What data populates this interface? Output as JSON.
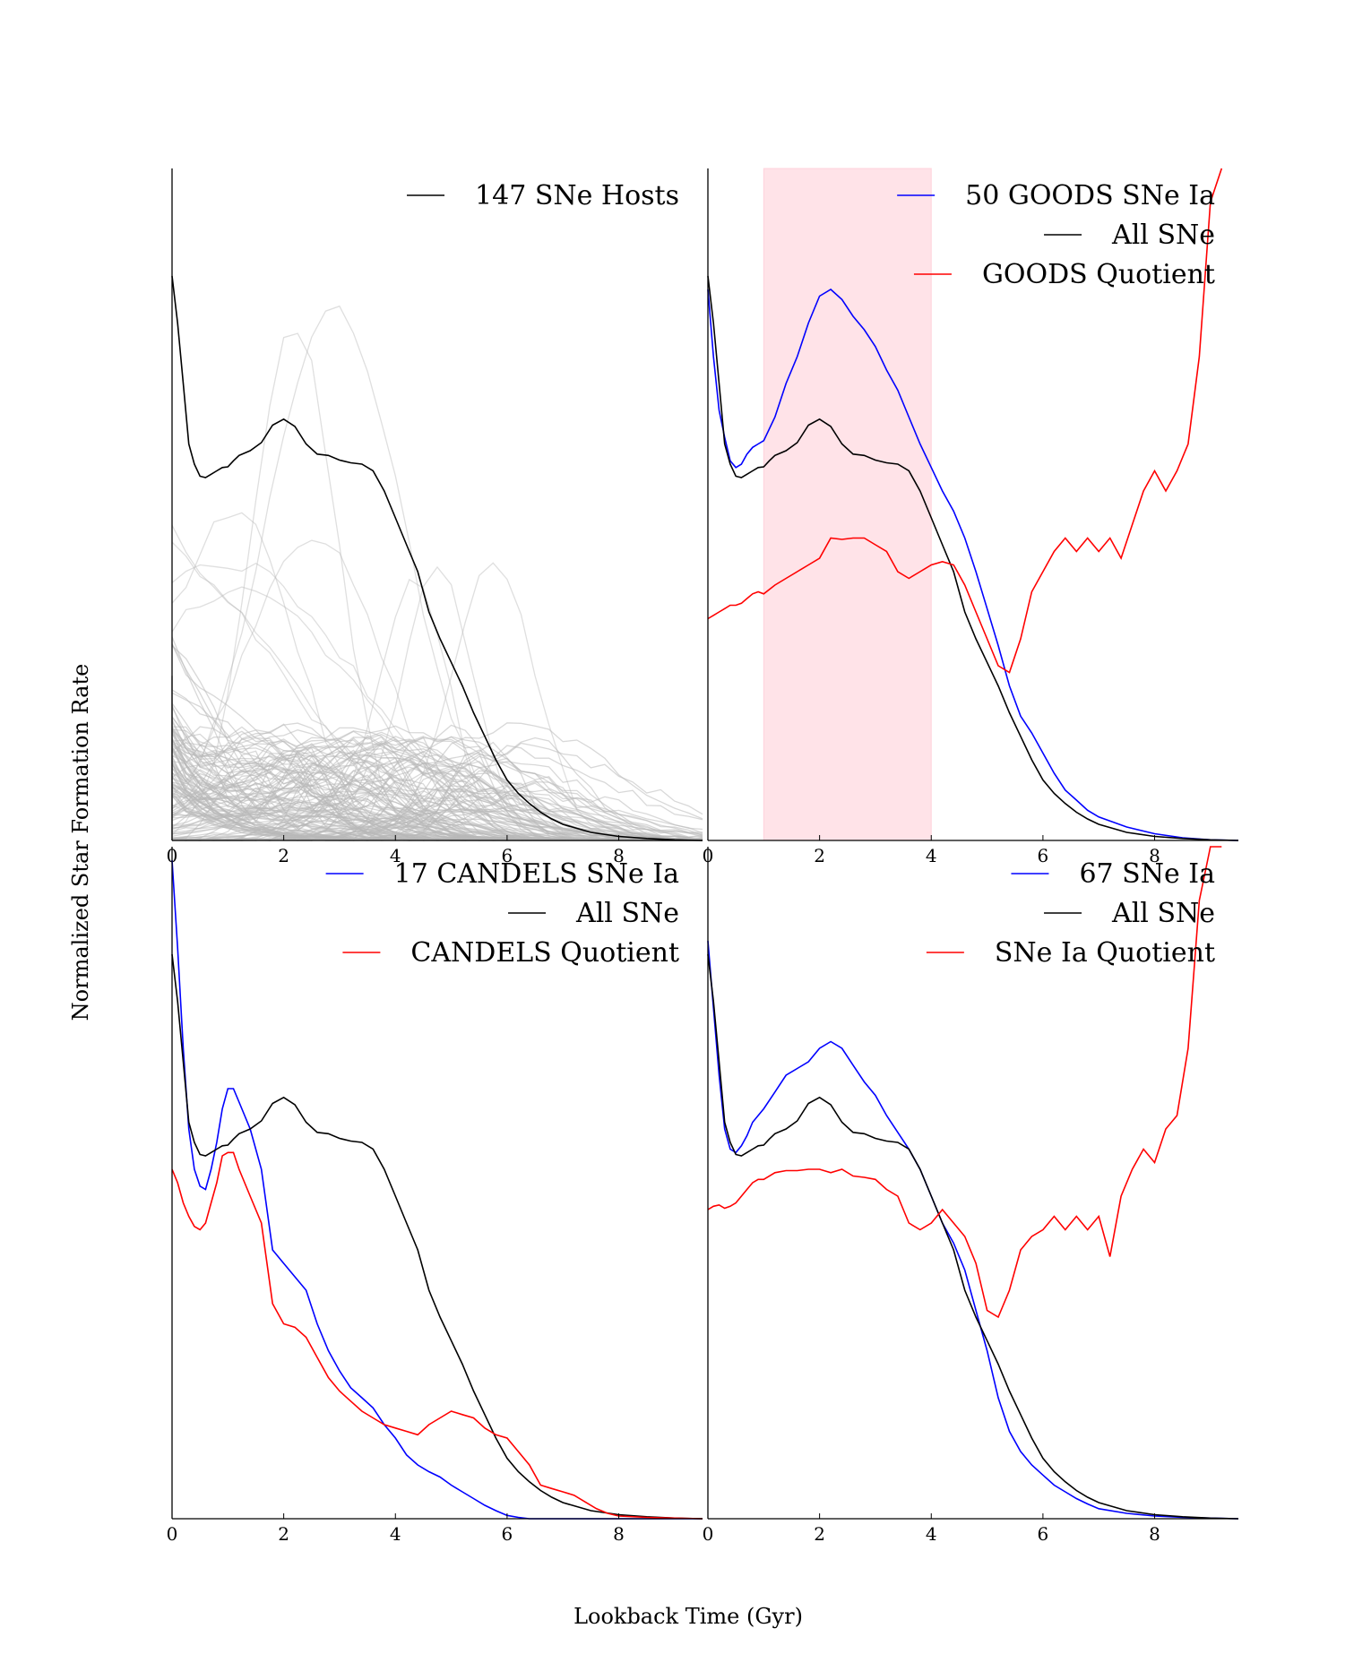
{
  "figure": {
    "xlabel": "Lookback Time (Gyr)",
    "ylabel": "Normalized Star Formation Rate"
  },
  "chart_data": [
    {
      "type": "line",
      "panel": "top-left",
      "xlim": [
        0,
        9.5
      ],
      "ylim": [
        0,
        1
      ],
      "xticks": [
        0,
        2,
        4,
        6,
        8
      ],
      "legend_position": "top-right",
      "series": [
        {
          "name": "147 SNe Hosts",
          "color": "#000000",
          "x": [
            0,
            0.1,
            0.2,
            0.3,
            0.4,
            0.5,
            0.6,
            0.7,
            0.8,
            0.9,
            1.0,
            1.1,
            1.2,
            1.4,
            1.6,
            1.8,
            2.0,
            2.2,
            2.4,
            2.6,
            2.8,
            3.0,
            3.2,
            3.4,
            3.6,
            3.8,
            4.0,
            4.2,
            4.4,
            4.6,
            4.8,
            5.0,
            5.2,
            5.4,
            5.6,
            5.8,
            6.0,
            6.2,
            6.4,
            6.6,
            6.8,
            7.0,
            7.5,
            8.0,
            8.5,
            9.0,
            9.5
          ],
          "y": [
            0.84,
            0.77,
            0.68,
            0.59,
            0.56,
            0.542,
            0.54,
            0.545,
            0.55,
            0.555,
            0.556,
            0.565,
            0.573,
            0.58,
            0.592,
            0.618,
            0.627,
            0.616,
            0.59,
            0.575,
            0.573,
            0.566,
            0.562,
            0.56,
            0.55,
            0.52,
            0.48,
            0.44,
            0.4,
            0.34,
            0.3,
            0.265,
            0.23,
            0.19,
            0.155,
            0.12,
            0.09,
            0.07,
            0.055,
            0.042,
            0.032,
            0.024,
            0.012,
            0.006,
            0.003,
            0.001,
            0.0
          ]
        }
      ],
      "background_hosts": {
        "count": 147,
        "color": "#b8b8b8"
      }
    },
    {
      "type": "line",
      "panel": "top-right",
      "xlim": [
        0,
        9.5
      ],
      "ylim": [
        0,
        1
      ],
      "xticks": [
        0,
        2,
        4,
        6,
        8
      ],
      "legend_position": "top-right",
      "shaded_region": {
        "x": [
          1.0,
          4.0
        ],
        "color": "#ffc0cb"
      },
      "series": [
        {
          "name": "50 GOODS SNe Ia",
          "color": "#0000ff",
          "x": [
            0,
            0.1,
            0.2,
            0.3,
            0.4,
            0.5,
            0.6,
            0.7,
            0.8,
            0.9,
            1.0,
            1.2,
            1.4,
            1.6,
            1.8,
            2.0,
            2.2,
            2.4,
            2.6,
            2.8,
            3.0,
            3.2,
            3.4,
            3.6,
            3.8,
            4.0,
            4.2,
            4.4,
            4.6,
            4.8,
            5.0,
            5.2,
            5.4,
            5.6,
            5.8,
            6.0,
            6.2,
            6.4,
            6.6,
            6.8,
            7.0,
            7.5,
            8.0,
            8.5,
            9.0,
            9.5
          ],
          "y": [
            0.82,
            0.72,
            0.64,
            0.6,
            0.565,
            0.555,
            0.56,
            0.575,
            0.585,
            0.59,
            0.595,
            0.63,
            0.68,
            0.72,
            0.77,
            0.81,
            0.82,
            0.805,
            0.78,
            0.76,
            0.735,
            0.7,
            0.67,
            0.63,
            0.59,
            0.555,
            0.52,
            0.49,
            0.45,
            0.4,
            0.345,
            0.29,
            0.23,
            0.185,
            0.16,
            0.13,
            0.1,
            0.075,
            0.06,
            0.045,
            0.035,
            0.02,
            0.01,
            0.004,
            0.001,
            0.0
          ]
        },
        {
          "name": "All SNe",
          "color": "#000000",
          "x": [
            0,
            0.1,
            0.2,
            0.3,
            0.4,
            0.5,
            0.6,
            0.7,
            0.8,
            0.9,
            1.0,
            1.1,
            1.2,
            1.4,
            1.6,
            1.8,
            2.0,
            2.2,
            2.4,
            2.6,
            2.8,
            3.0,
            3.2,
            3.4,
            3.6,
            3.8,
            4.0,
            4.2,
            4.4,
            4.6,
            4.8,
            5.0,
            5.2,
            5.4,
            5.6,
            5.8,
            6.0,
            6.2,
            6.4,
            6.6,
            6.8,
            7.0,
            7.5,
            8.0,
            8.5,
            9.0,
            9.5
          ],
          "y": [
            0.84,
            0.77,
            0.68,
            0.59,
            0.56,
            0.542,
            0.54,
            0.545,
            0.55,
            0.555,
            0.556,
            0.565,
            0.573,
            0.58,
            0.592,
            0.618,
            0.627,
            0.616,
            0.59,
            0.575,
            0.573,
            0.566,
            0.562,
            0.56,
            0.55,
            0.52,
            0.48,
            0.44,
            0.4,
            0.34,
            0.3,
            0.265,
            0.23,
            0.19,
            0.155,
            0.12,
            0.09,
            0.07,
            0.055,
            0.042,
            0.032,
            0.024,
            0.012,
            0.006,
            0.003,
            0.001,
            0.0
          ]
        },
        {
          "name": "GOODS Quotient",
          "color": "#ff0000",
          "x": [
            0,
            0.1,
            0.2,
            0.3,
            0.4,
            0.5,
            0.6,
            0.7,
            0.8,
            0.9,
            1.0,
            1.2,
            1.4,
            1.6,
            1.8,
            2.0,
            2.2,
            2.4,
            2.6,
            2.8,
            3.0,
            3.2,
            3.4,
            3.6,
            3.8,
            4.0,
            4.2,
            4.4,
            4.6,
            4.8,
            5.0,
            5.2,
            5.4,
            5.6,
            5.8,
            6.0,
            6.2,
            6.4,
            6.6,
            6.8,
            7.0,
            7.2,
            7.4,
            7.6,
            7.8,
            8.0,
            8.2,
            8.4,
            8.6,
            8.8,
            9.0,
            9.2
          ],
          "y": [
            0.33,
            0.335,
            0.34,
            0.345,
            0.35,
            0.35,
            0.353,
            0.36,
            0.367,
            0.37,
            0.367,
            0.38,
            0.39,
            0.4,
            0.41,
            0.42,
            0.45,
            0.448,
            0.45,
            0.45,
            0.44,
            0.43,
            0.4,
            0.39,
            0.4,
            0.41,
            0.415,
            0.41,
            0.38,
            0.34,
            0.3,
            0.26,
            0.25,
            0.3,
            0.37,
            0.4,
            0.43,
            0.45,
            0.43,
            0.45,
            0.43,
            0.45,
            0.42,
            0.47,
            0.52,
            0.55,
            0.52,
            0.55,
            0.59,
            0.72,
            0.95,
            1.0
          ]
        }
      ]
    },
    {
      "type": "line",
      "panel": "bottom-left",
      "xlim": [
        0,
        9.5
      ],
      "ylim": [
        0,
        1
      ],
      "xticks": [
        0,
        2,
        4,
        6,
        8
      ],
      "legend_position": "top-right",
      "series": [
        {
          "name": "17 CANDELS SNe Ia",
          "color": "#0000ff",
          "x": [
            0,
            0.1,
            0.2,
            0.3,
            0.4,
            0.5,
            0.6,
            0.7,
            0.8,
            0.9,
            1.0,
            1.1,
            1.2,
            1.4,
            1.6,
            1.8,
            2.0,
            2.2,
            2.4,
            2.6,
            2.8,
            3.0,
            3.2,
            3.4,
            3.6,
            3.8,
            4.0,
            4.2,
            4.4,
            4.6,
            4.8,
            5.0,
            5.2,
            5.4,
            5.6,
            5.8,
            6.0,
            6.2,
            6.4,
            6.6,
            6.8,
            7.0,
            7.5,
            8.0,
            8.5,
            9.0,
            9.5
          ],
          "y": [
            0.98,
            0.85,
            0.7,
            0.58,
            0.52,
            0.495,
            0.49,
            0.52,
            0.56,
            0.61,
            0.64,
            0.64,
            0.62,
            0.58,
            0.52,
            0.4,
            0.38,
            0.36,
            0.34,
            0.29,
            0.25,
            0.22,
            0.195,
            0.18,
            0.165,
            0.14,
            0.12,
            0.095,
            0.08,
            0.07,
            0.062,
            0.05,
            0.04,
            0.03,
            0.02,
            0.012,
            0.005,
            0.002,
            0.0,
            0.0,
            0.0,
            0.0,
            0.0,
            0.0,
            0.0,
            0.0,
            0.0
          ]
        },
        {
          "name": "All SNe",
          "color": "#000000",
          "x": [
            0,
            0.1,
            0.2,
            0.3,
            0.4,
            0.5,
            0.6,
            0.7,
            0.8,
            0.9,
            1.0,
            1.1,
            1.2,
            1.4,
            1.6,
            1.8,
            2.0,
            2.2,
            2.4,
            2.6,
            2.8,
            3.0,
            3.2,
            3.4,
            3.6,
            3.8,
            4.0,
            4.2,
            4.4,
            4.6,
            4.8,
            5.0,
            5.2,
            5.4,
            5.6,
            5.8,
            6.0,
            6.2,
            6.4,
            6.6,
            6.8,
            7.0,
            7.5,
            8.0,
            8.5,
            9.0,
            9.5
          ],
          "y": [
            0.84,
            0.77,
            0.68,
            0.59,
            0.56,
            0.542,
            0.54,
            0.545,
            0.55,
            0.555,
            0.556,
            0.565,
            0.573,
            0.58,
            0.592,
            0.618,
            0.627,
            0.616,
            0.59,
            0.575,
            0.573,
            0.566,
            0.562,
            0.56,
            0.55,
            0.52,
            0.48,
            0.44,
            0.4,
            0.34,
            0.3,
            0.265,
            0.23,
            0.19,
            0.155,
            0.12,
            0.09,
            0.07,
            0.055,
            0.042,
            0.032,
            0.024,
            0.012,
            0.006,
            0.003,
            0.001,
            0.0
          ]
        },
        {
          "name": "CANDELS Quotient",
          "color": "#ff0000",
          "x": [
            0,
            0.1,
            0.2,
            0.3,
            0.4,
            0.5,
            0.6,
            0.7,
            0.8,
            0.9,
            1.0,
            1.1,
            1.2,
            1.4,
            1.6,
            1.8,
            2.0,
            2.2,
            2.4,
            2.6,
            2.8,
            3.0,
            3.2,
            3.4,
            3.6,
            3.8,
            4.0,
            4.2,
            4.4,
            4.6,
            4.8,
            5.0,
            5.2,
            5.4,
            5.6,
            5.8,
            6.0,
            6.2,
            6.4,
            6.6,
            6.8,
            7.0,
            7.2,
            7.4,
            7.6,
            7.8,
            8.0,
            8.5,
            9.0,
            9.5
          ],
          "y": [
            0.52,
            0.5,
            0.47,
            0.45,
            0.435,
            0.43,
            0.44,
            0.47,
            0.5,
            0.54,
            0.545,
            0.545,
            0.52,
            0.48,
            0.44,
            0.32,
            0.29,
            0.285,
            0.27,
            0.24,
            0.21,
            0.19,
            0.175,
            0.16,
            0.15,
            0.14,
            0.135,
            0.13,
            0.125,
            0.14,
            0.15,
            0.16,
            0.155,
            0.15,
            0.135,
            0.125,
            0.12,
            0.1,
            0.08,
            0.05,
            0.045,
            0.04,
            0.035,
            0.025,
            0.015,
            0.008,
            0.004,
            0.002,
            0.001,
            0.0
          ]
        }
      ]
    },
    {
      "type": "line",
      "panel": "bottom-right",
      "xlim": [
        0,
        9.5
      ],
      "ylim": [
        0,
        1
      ],
      "xticks": [
        0,
        2,
        4,
        6,
        8
      ],
      "legend_position": "top-right",
      "series": [
        {
          "name": "67 SNe Ia",
          "color": "#0000ff",
          "x": [
            0,
            0.1,
            0.2,
            0.3,
            0.4,
            0.5,
            0.6,
            0.7,
            0.8,
            0.9,
            1.0,
            1.2,
            1.4,
            1.6,
            1.8,
            2.0,
            2.2,
            2.4,
            2.6,
            2.8,
            3.0,
            3.2,
            3.4,
            3.6,
            3.8,
            4.0,
            4.2,
            4.4,
            4.6,
            4.8,
            5.0,
            5.2,
            5.4,
            5.6,
            5.8,
            6.0,
            6.2,
            6.4,
            6.6,
            6.8,
            7.0,
            7.5,
            8.0,
            8.5,
            9.0,
            9.5
          ],
          "y": [
            0.86,
            0.76,
            0.66,
            0.58,
            0.55,
            0.545,
            0.555,
            0.57,
            0.59,
            0.6,
            0.61,
            0.635,
            0.66,
            0.67,
            0.68,
            0.7,
            0.71,
            0.7,
            0.675,
            0.65,
            0.63,
            0.6,
            0.575,
            0.55,
            0.52,
            0.48,
            0.44,
            0.41,
            0.37,
            0.31,
            0.25,
            0.18,
            0.13,
            0.1,
            0.08,
            0.065,
            0.05,
            0.04,
            0.03,
            0.022,
            0.015,
            0.008,
            0.004,
            0.002,
            0.001,
            0.0
          ]
        },
        {
          "name": "All SNe",
          "color": "#000000",
          "x": [
            0,
            0.1,
            0.2,
            0.3,
            0.4,
            0.5,
            0.6,
            0.7,
            0.8,
            0.9,
            1.0,
            1.1,
            1.2,
            1.4,
            1.6,
            1.8,
            2.0,
            2.2,
            2.4,
            2.6,
            2.8,
            3.0,
            3.2,
            3.4,
            3.6,
            3.8,
            4.0,
            4.2,
            4.4,
            4.6,
            4.8,
            5.0,
            5.2,
            5.4,
            5.6,
            5.8,
            6.0,
            6.2,
            6.4,
            6.6,
            6.8,
            7.0,
            7.5,
            8.0,
            8.5,
            9.0,
            9.5
          ],
          "y": [
            0.84,
            0.77,
            0.68,
            0.59,
            0.56,
            0.542,
            0.54,
            0.545,
            0.55,
            0.555,
            0.556,
            0.565,
            0.573,
            0.58,
            0.592,
            0.618,
            0.627,
            0.616,
            0.59,
            0.575,
            0.573,
            0.566,
            0.562,
            0.56,
            0.55,
            0.52,
            0.48,
            0.44,
            0.4,
            0.34,
            0.3,
            0.265,
            0.23,
            0.19,
            0.155,
            0.12,
            0.09,
            0.07,
            0.055,
            0.042,
            0.032,
            0.024,
            0.012,
            0.006,
            0.003,
            0.001,
            0.0
          ]
        },
        {
          "name": "SNe Ia Quotient",
          "color": "#ff0000",
          "x": [
            0,
            0.1,
            0.2,
            0.3,
            0.4,
            0.5,
            0.6,
            0.7,
            0.8,
            0.9,
            1.0,
            1.2,
            1.4,
            1.6,
            1.8,
            2.0,
            2.2,
            2.4,
            2.6,
            2.8,
            3.0,
            3.2,
            3.4,
            3.6,
            3.8,
            4.0,
            4.2,
            4.4,
            4.6,
            4.8,
            5.0,
            5.2,
            5.4,
            5.6,
            5.8,
            6.0,
            6.2,
            6.4,
            6.6,
            6.8,
            7.0,
            7.2,
            7.4,
            7.6,
            7.8,
            8.0,
            8.2,
            8.4,
            8.6,
            8.8,
            9.0,
            9.2
          ],
          "y": [
            0.46,
            0.465,
            0.467,
            0.462,
            0.465,
            0.47,
            0.48,
            0.49,
            0.5,
            0.505,
            0.505,
            0.515,
            0.518,
            0.518,
            0.52,
            0.52,
            0.515,
            0.52,
            0.51,
            0.508,
            0.505,
            0.49,
            0.48,
            0.44,
            0.43,
            0.44,
            0.46,
            0.44,
            0.42,
            0.38,
            0.31,
            0.3,
            0.34,
            0.4,
            0.42,
            0.43,
            0.45,
            0.43,
            0.45,
            0.43,
            0.45,
            0.39,
            0.48,
            0.52,
            0.55,
            0.53,
            0.58,
            0.6,
            0.7,
            0.92,
            1.0,
            1.0
          ]
        }
      ]
    }
  ]
}
